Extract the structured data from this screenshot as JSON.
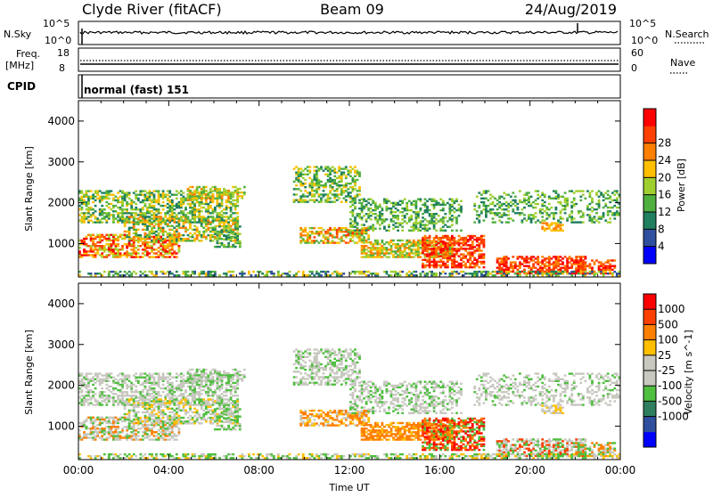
{
  "header": {
    "station": "Clyde River (fitACF)",
    "beam": "Beam 09",
    "date": "24/Aug/2019"
  },
  "panels": {
    "noise": {
      "left_label": "N.Sky",
      "left_ticks": [
        "10^5",
        "10^0"
      ],
      "right_label": "N.Search",
      "right_ticks": [
        "10^5",
        "10^0"
      ]
    },
    "freq": {
      "left_label_1": "Freq.",
      "left_label_2": "[MHz]",
      "left_ticks": [
        "18",
        "8"
      ],
      "right_label": "Nave",
      "right_ticks": [
        "60",
        "0"
      ]
    },
    "cpid": {
      "label": "CPID",
      "text": "normal (fast) 151"
    }
  },
  "colors": {
    "power_scale": [
      "#0000ff",
      "#2f4f9f",
      "#1f7f5f",
      "#4faf3f",
      "#9fcf2f",
      "#ffbf00",
      "#ff7f00",
      "#ff3f00",
      "#ff0000"
    ],
    "velocity_scale": [
      "#ff0000",
      "#ff3f00",
      "#ff7f00",
      "#ffbf00",
      "#c8c8c0",
      "#c8c8c0",
      "#4fbf3f",
      "#2f7f5f",
      "#2f4f9f",
      "#0000ff"
    ]
  },
  "chart_data": [
    {
      "type": "heatmap",
      "name": "power",
      "ylabel": "Slant Range [km]",
      "ylim": [
        180,
        4500
      ],
      "y_ticks": [
        "1000",
        "2000",
        "3000",
        "4000"
      ],
      "colorbar_label": "Power [dB]",
      "colorbar_ticks": [
        "4",
        "8",
        "12",
        "16",
        "20",
        "24",
        "28"
      ]
    },
    {
      "type": "heatmap",
      "name": "velocity",
      "ylabel": "Slant Range [km]",
      "xlabel": "Time UT",
      "ylim": [
        180,
        4500
      ],
      "y_ticks": [
        "1000",
        "2000",
        "3000",
        "4000"
      ],
      "x_ticks": [
        "00:00",
        "04:00",
        "08:00",
        "12:00",
        "16:00",
        "20:00",
        "00:00"
      ],
      "colorbar_label": "Velocity [m s^-1]",
      "colorbar_ticks": [
        "1000",
        "500",
        "100",
        "25",
        "-25",
        "-100",
        "-500",
        "-1000"
      ]
    }
  ]
}
